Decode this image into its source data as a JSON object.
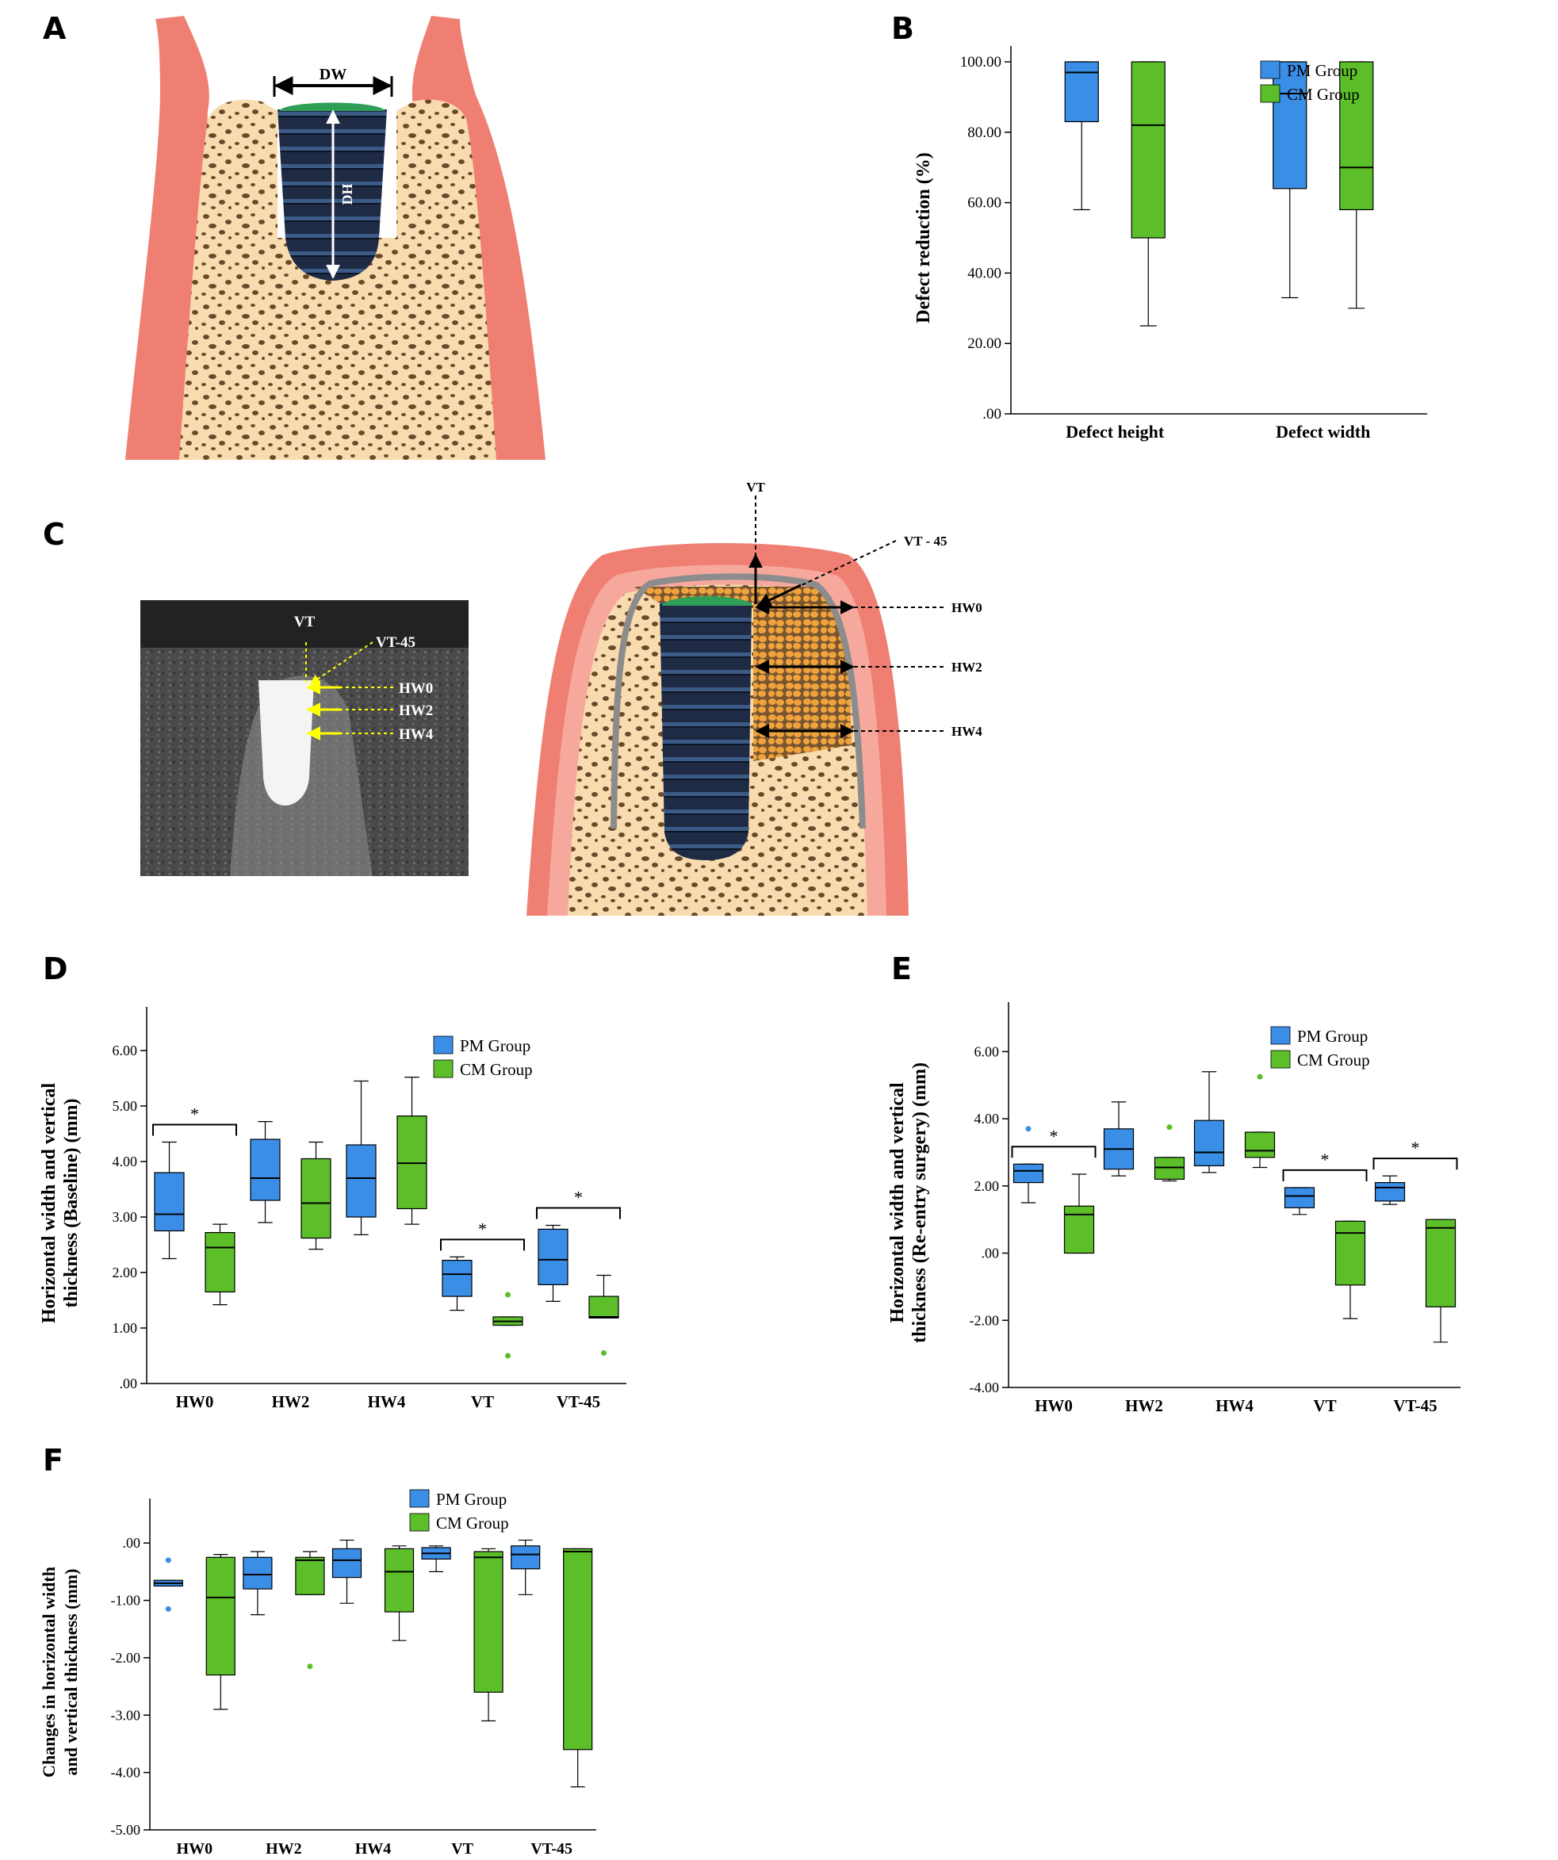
{
  "panels": {
    "A": "A",
    "B": "B",
    "C": "C",
    "D": "D",
    "E": "E",
    "F": "F"
  },
  "diagram_a": {
    "dw": "DW",
    "dh": "DH"
  },
  "diagram_c": {
    "ct_labels": [
      "VT",
      "VT-45",
      "HW0",
      "HW2",
      "HW4"
    ],
    "schematic_labels": [
      "VT",
      "VT - 45",
      "HW0",
      "HW2",
      "HW4"
    ]
  },
  "colors": {
    "pm": "#3a8ee6",
    "cm": "#5cbf2a",
    "gingiva": "#ef7f72",
    "gingiva_light": "#f6a89d",
    "bone": "#f8dcb0",
    "implant": "#1f2b45",
    "membrane": "#2f9e57",
    "graft": "#f0a33c",
    "annotation": "#ffff00"
  },
  "chart_data": [
    {
      "id": "B",
      "type": "box",
      "title": "",
      "xlabel": "",
      "ylabel": "Defect reduction (%)",
      "ylim": [
        0,
        100
      ],
      "yticks": [
        ".00",
        "20.00",
        "40.00",
        "60.00",
        "80.00",
        "100.00"
      ],
      "categories": [
        "Defect height",
        "Defect width"
      ],
      "legend": "top-right",
      "series": [
        {
          "name": "PM Group",
          "boxes": [
            {
              "min": 58,
              "q1": 83,
              "median": 97,
              "q3": 100,
              "max": 100
            },
            {
              "min": 33,
              "q1": 64,
              "median": 91,
              "q3": 100,
              "max": 100
            }
          ]
        },
        {
          "name": "CM Group",
          "boxes": [
            {
              "min": 25,
              "q1": 50,
              "median": 82,
              "q3": 100,
              "max": 100
            },
            {
              "min": 30,
              "q1": 58,
              "median": 70,
              "q3": 100,
              "max": 100
            }
          ]
        }
      ]
    },
    {
      "id": "D",
      "type": "box",
      "title": "",
      "xlabel": "",
      "ylabel": "Horizontal width and vertical thickness (Baseline) (mm)",
      "ylabel_lines": [
        "Horizontal width and vertical",
        "thickness (Baseline) (mm)"
      ],
      "ylim": [
        0,
        6.5
      ],
      "yticks": [
        ".00",
        "1.00",
        "2.00",
        "3.00",
        "4.00",
        "5.00",
        "6.00"
      ],
      "categories": [
        "HW0",
        "HW2",
        "HW4",
        "VT",
        "VT-45"
      ],
      "legend": "top-right",
      "significance": [
        0,
        3,
        4
      ],
      "significance_label": "*",
      "series": [
        {
          "name": "PM Group",
          "boxes": [
            {
              "min": 2.25,
              "q1": 2.75,
              "median": 3.05,
              "q3": 3.8,
              "max": 4.35
            },
            {
              "min": 2.9,
              "q1": 3.3,
              "median": 3.7,
              "q3": 4.4,
              "max": 4.72
            },
            {
              "min": 2.68,
              "q1": 3.0,
              "median": 3.7,
              "q3": 4.3,
              "max": 5.45
            },
            {
              "min": 1.32,
              "q1": 1.57,
              "median": 1.97,
              "q3": 2.22,
              "max": 2.28
            },
            {
              "min": 1.48,
              "q1": 1.78,
              "median": 2.23,
              "q3": 2.78,
              "max": 2.85
            }
          ],
          "outliers": []
        },
        {
          "name": "CM Group",
          "boxes": [
            {
              "min": 1.42,
              "q1": 1.65,
              "median": 2.45,
              "q3": 2.72,
              "max": 2.87
            },
            {
              "min": 2.42,
              "q1": 2.62,
              "median": 3.25,
              "q3": 4.05,
              "max": 4.35
            },
            {
              "min": 2.87,
              "q1": 3.15,
              "median": 3.97,
              "q3": 4.82,
              "max": 5.52
            },
            {
              "min": 1.05,
              "q1": 1.05,
              "median": 1.12,
              "q3": 1.2,
              "max": 1.2
            },
            {
              "min": 1.18,
              "q1": 1.18,
              "median": 1.2,
              "q3": 1.57,
              "max": 1.95
            }
          ],
          "outliers": [
            [
              3,
              1.6
            ],
            [
              3,
              0.5
            ],
            [
              4,
              0.55
            ]
          ]
        }
      ]
    },
    {
      "id": "E",
      "type": "box",
      "title": "",
      "xlabel": "",
      "ylabel": "Horizontal width and vertical thickness (Re-entry surgery) (mm)",
      "ylabel_lines": [
        "Horizontal width and vertical",
        "thickness (Re-entry surgery) (mm)"
      ],
      "ylim": [
        -4,
        7
      ],
      "yticks": [
        "-4.00",
        "-2.00",
        ".00",
        "2.00",
        "4.00",
        "6.00"
      ],
      "categories": [
        "HW0",
        "HW2",
        "HW4",
        "VT",
        "VT-45"
      ],
      "legend": "top-right",
      "significance": [
        0,
        3,
        4
      ],
      "significance_label": "*",
      "series": [
        {
          "name": "PM Group",
          "boxes": [
            {
              "min": 1.5,
              "q1": 2.1,
              "median": 2.45,
              "q3": 2.65,
              "max": 2.65
            },
            {
              "min": 2.3,
              "q1": 2.5,
              "median": 3.1,
              "q3": 3.7,
              "max": 4.5
            },
            {
              "min": 2.4,
              "q1": 2.6,
              "median": 3.0,
              "q3": 3.95,
              "max": 5.4
            },
            {
              "min": 1.15,
              "q1": 1.35,
              "median": 1.7,
              "q3": 1.95,
              "max": 1.95
            },
            {
              "min": 1.45,
              "q1": 1.55,
              "median": 1.95,
              "q3": 2.1,
              "max": 2.3
            }
          ],
          "outliers": [
            [
              0,
              3.7
            ]
          ]
        },
        {
          "name": "CM Group",
          "boxes": [
            {
              "min": 0.0,
              "q1": 0.0,
              "median": 1.15,
              "q3": 1.4,
              "max": 2.35
            },
            {
              "min": 2.15,
              "q1": 2.2,
              "median": 2.55,
              "q3": 2.85,
              "max": 2.85
            },
            {
              "min": 2.55,
              "q1": 2.85,
              "median": 3.05,
              "q3": 3.6,
              "max": 3.6
            },
            {
              "min": -1.95,
              "q1": -0.95,
              "median": 0.6,
              "q3": 0.95,
              "max": 0.95
            },
            {
              "min": -2.65,
              "q1": -1.6,
              "median": 0.75,
              "q3": 1.0,
              "max": 1.0
            }
          ],
          "outliers": [
            [
              1,
              3.75
            ],
            [
              2,
              5.25
            ]
          ]
        }
      ]
    },
    {
      "id": "F",
      "type": "box",
      "title": "",
      "xlabel": "",
      "ylabel": "Changes in horizontal width and vertical thickness (mm)",
      "ylabel_lines": [
        "Changes in horizontal width",
        "and vertical thickness (mm)"
      ],
      "ylim": [
        -5,
        0.5
      ],
      "yticks": [
        "-5.00",
        "-4.00",
        "-3.00",
        "-2.00",
        "-1.00",
        ".00"
      ],
      "categories": [
        "HW0",
        "HW2",
        "HW4",
        "VT",
        "VT-45"
      ],
      "legend": "top-right",
      "significance": [],
      "significance_label": "*",
      "series": [
        {
          "name": "PM Group",
          "boxes": [
            {
              "min": -0.75,
              "q1": -0.75,
              "median": -0.7,
              "q3": -0.65,
              "max": -0.65
            },
            {
              "min": -1.25,
              "q1": -0.8,
              "median": -0.55,
              "q3": -0.25,
              "max": -0.15
            },
            {
              "min": -1.05,
              "q1": -0.6,
              "median": -0.3,
              "q3": -0.1,
              "max": 0.05
            },
            {
              "min": -0.5,
              "q1": -0.28,
              "median": -0.18,
              "q3": -0.08,
              "max": -0.05
            },
            {
              "min": -0.9,
              "q1": -0.45,
              "median": -0.2,
              "q3": -0.05,
              "max": 0.05
            }
          ],
          "outliers": [
            [
              0,
              -0.3
            ],
            [
              0,
              -1.15
            ]
          ]
        },
        {
          "name": "CM Group",
          "boxes": [
            {
              "min": -2.9,
              "q1": -2.3,
              "median": -0.95,
              "q3": -0.25,
              "max": -0.2
            },
            {
              "min": -0.9,
              "q1": -0.9,
              "median": -0.3,
              "q3": -0.25,
              "max": -0.15
            },
            {
              "min": -1.7,
              "q1": -1.2,
              "median": -0.5,
              "q3": -0.1,
              "max": -0.05
            },
            {
              "min": -3.1,
              "q1": -2.6,
              "median": -0.25,
              "q3": -0.15,
              "max": -0.1
            },
            {
              "min": -4.25,
              "q1": -3.6,
              "median": -0.15,
              "q3": -0.1,
              "max": -0.1
            }
          ],
          "outliers": [
            [
              1,
              -2.15
            ]
          ]
        }
      ]
    }
  ]
}
